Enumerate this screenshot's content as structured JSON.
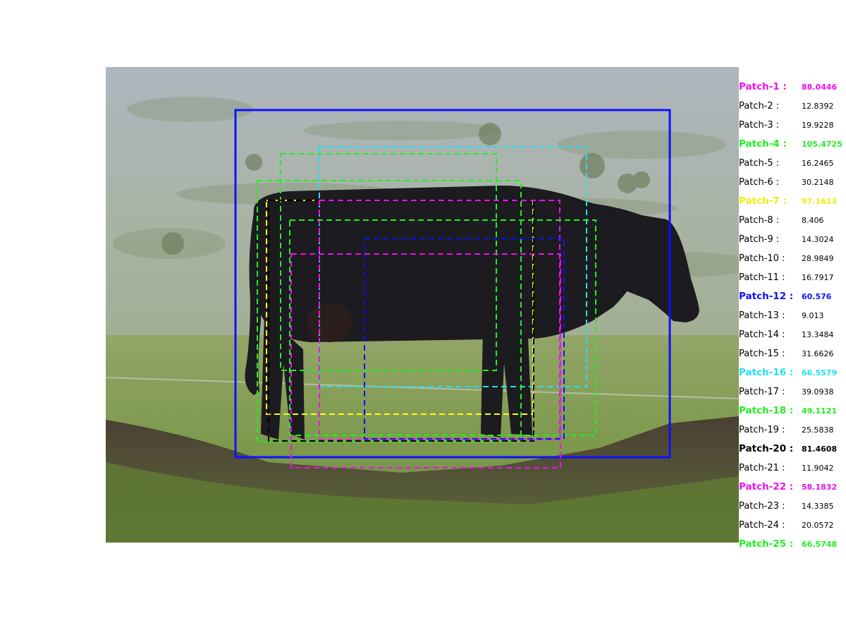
{
  "image": {
    "subject": "black cow standing sideways on grassy hillside in misty rain"
  },
  "colors": {
    "blue": "#1010ff",
    "green": "#22ee22",
    "magenta": "#ee10ee",
    "yellow": "#ffff10",
    "cyan": "#22e0f0",
    "black": "#000000"
  },
  "bounding_boxes": [
    {
      "name": "ground-truth-box",
      "color": "blue",
      "style": "solid"
    },
    {
      "name": "patch-4-box",
      "color": "green",
      "style": "dashed"
    },
    {
      "name": "patch-16-box",
      "color": "cyan",
      "style": "dashed"
    },
    {
      "name": "patch-25-box",
      "color": "green",
      "style": "dashed"
    },
    {
      "name": "patch-7-box",
      "color": "yellow",
      "style": "dashed"
    },
    {
      "name": "patch-20-box",
      "color": "black",
      "style": "dashed"
    },
    {
      "name": "patch-1-box",
      "color": "magenta",
      "style": "dashed"
    },
    {
      "name": "patch-18-box",
      "color": "green",
      "style": "dashed"
    },
    {
      "name": "patch-12-box",
      "color": "blue",
      "style": "dashed"
    },
    {
      "name": "patch-22-box",
      "color": "magenta",
      "style": "dashed"
    }
  ],
  "patches": [
    {
      "label": "Patch-1 :",
      "value": "88.0446",
      "color": "#ee10ee",
      "highlight": true
    },
    {
      "label": "Patch-2 :",
      "value": "12.8392",
      "color": "#000000",
      "highlight": false
    },
    {
      "label": "Patch-3 :",
      "value": "19.9228",
      "color": "#000000",
      "highlight": false
    },
    {
      "label": "Patch-4 :",
      "value": "105.4725",
      "color": "#22ee22",
      "highlight": true
    },
    {
      "label": "Patch-5 :",
      "value": "16.2465",
      "color": "#000000",
      "highlight": false
    },
    {
      "label": "Patch-6 :",
      "value": "30.2148",
      "color": "#000000",
      "highlight": false
    },
    {
      "label": "Patch-7 :",
      "value": "97.1613",
      "color": "#eeee10",
      "highlight": true
    },
    {
      "label": "Patch-8 :",
      "value": "8.406",
      "color": "#000000",
      "highlight": false
    },
    {
      "label": "Patch-9 :",
      "value": "14.3024",
      "color": "#000000",
      "highlight": false
    },
    {
      "label": "Patch-10 :",
      "value": "28.9849",
      "color": "#000000",
      "highlight": false
    },
    {
      "label": "Patch-11 :",
      "value": "16.7917",
      "color": "#000000",
      "highlight": false
    },
    {
      "label": "Patch-12 :",
      "value": "60.576",
      "color": "#1010ff",
      "highlight": true
    },
    {
      "label": "Patch-13 :",
      "value": "9.013",
      "color": "#000000",
      "highlight": false
    },
    {
      "label": "Patch-14 :",
      "value": "13.3484",
      "color": "#000000",
      "highlight": false
    },
    {
      "label": "Patch-15 :",
      "value": "31.6626",
      "color": "#000000",
      "highlight": false
    },
    {
      "label": "Patch-16 :",
      "value": "66.5579",
      "color": "#22e0f0",
      "highlight": true
    },
    {
      "label": "Patch-17 :",
      "value": "39.0938",
      "color": "#000000",
      "highlight": false
    },
    {
      "label": "Patch-18 :",
      "value": "49.1121",
      "color": "#22ee22",
      "highlight": true
    },
    {
      "label": "Patch-19 :",
      "value": "25.5838",
      "color": "#000000",
      "highlight": false
    },
    {
      "label": "Patch-20 :",
      "value": "81.4608",
      "color": "#000000",
      "highlight": true
    },
    {
      "label": "Patch-21 :",
      "value": "11.9042",
      "color": "#000000",
      "highlight": false
    },
    {
      "label": "Patch-22 :",
      "value": "58.1832",
      "color": "#ee10ee",
      "highlight": true
    },
    {
      "label": "Patch-23 :",
      "value": "14.3385",
      "color": "#000000",
      "highlight": false
    },
    {
      "label": "Patch-24 :",
      "value": "20.0572",
      "color": "#000000",
      "highlight": false
    },
    {
      "label": "Patch-25 :",
      "value": "66.5748",
      "color": "#22ee22",
      "highlight": true
    }
  ]
}
